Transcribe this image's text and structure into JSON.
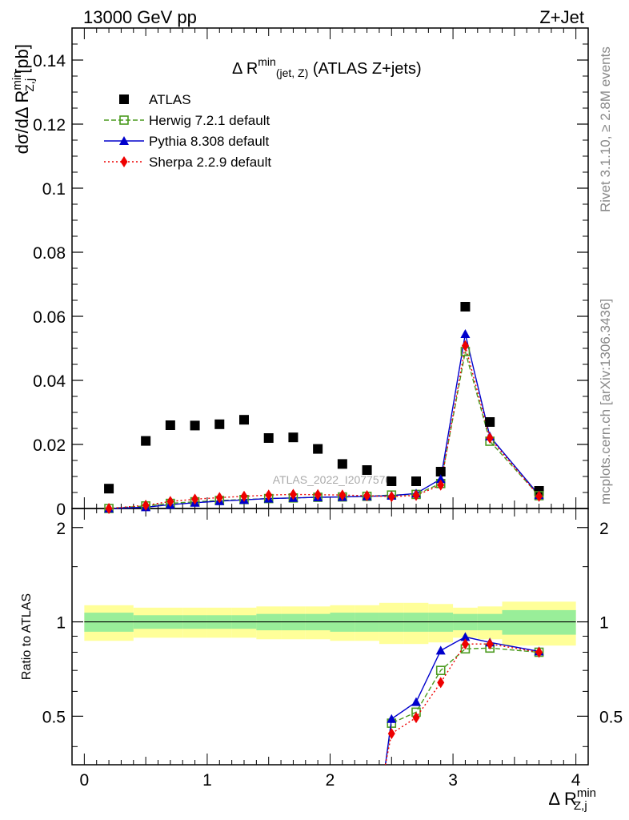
{
  "header": {
    "left": "13000 GeV pp",
    "right": "Z+Jet"
  },
  "side_text": {
    "rivet": "Rivet 3.1.10, ≥ 2.8M events",
    "mcplots": "mcplots.cern.ch [arXiv:1306.3436]"
  },
  "watermark": "ATLAS_2022_I2077570",
  "chart_data": [
    {
      "type": "scatter",
      "title": {
        "prefix": "Δ R",
        "sup": "min",
        "sub": "(jet, Z)",
        "suffix": " (ATLAS Z+jets)"
      },
      "ylabel": "dσ/dΔ R^min_Z,j [pb]",
      "xlim": [
        -0.1,
        4.1
      ],
      "ylim": [
        0,
        0.15
      ],
      "yticks": [
        0,
        0.02,
        0.04,
        0.06,
        0.08,
        0.1,
        0.12,
        0.14
      ],
      "ytick_labels": [
        "0",
        "0.02",
        "0.04",
        "0.06",
        "0.08",
        "0.1",
        "0.12",
        "0.14"
      ],
      "legend_position": "top-left",
      "x": [
        0.2,
        0.5,
        0.7,
        0.9,
        1.1,
        1.3,
        1.5,
        1.7,
        1.9,
        2.1,
        2.3,
        2.5,
        2.7,
        2.9,
        3.1,
        3.3,
        3.7
      ],
      "series": [
        {
          "name": "ATLAS",
          "color": "#000000",
          "marker": "square-filled",
          "values": [
            0.0062,
            0.0211,
            0.026,
            0.0259,
            0.0263,
            0.0277,
            0.022,
            0.0222,
            0.0186,
            0.0139,
            0.012,
            0.0085,
            0.0085,
            0.0115,
            0.063,
            0.027,
            0.0055
          ]
        },
        {
          "name": "Herwig 7.2.1 default",
          "color": "#4a9a1e",
          "marker": "square-open",
          "line": "dashed",
          "values": [
            0.0,
            0.0008,
            0.0016,
            0.0021,
            0.0025,
            0.0028,
            0.0031,
            0.0033,
            0.0035,
            0.0036,
            0.0038,
            0.0042,
            0.0044,
            0.0078,
            0.049,
            0.021,
            0.004
          ]
        },
        {
          "name": "Pythia 8.308 default",
          "color": "#0000cc",
          "marker": "triangle-filled",
          "line": "solid",
          "values": [
            0.0,
            0.0004,
            0.0012,
            0.0018,
            0.0023,
            0.0027,
            0.0031,
            0.0033,
            0.0035,
            0.0036,
            0.0038,
            0.004,
            0.0047,
            0.0092,
            0.0545,
            0.0225,
            0.0042
          ]
        },
        {
          "name": "Sherpa 2.2.9 default",
          "color": "#ee0000",
          "marker": "diamond-filled",
          "line": "dotted",
          "values": [
            0.0,
            0.001,
            0.0022,
            0.0029,
            0.0034,
            0.0038,
            0.0042,
            0.0044,
            0.0043,
            0.0042,
            0.004,
            0.0037,
            0.0041,
            0.0073,
            0.0508,
            0.022,
            0.0038
          ]
        }
      ]
    },
    {
      "type": "line",
      "ylabel": "Ratio to ATLAS",
      "xlabel": "Δ R^min_Z,j",
      "xlim": [
        -0.1,
        4.1
      ],
      "ylim": [
        0.35,
        2.3
      ],
      "xticks": [
        0,
        1,
        2,
        3,
        4
      ],
      "xtick_labels": [
        "0",
        "1",
        "2",
        "3",
        "4"
      ],
      "yticks": [
        0.5,
        1,
        2
      ],
      "ytick_labels": [
        "0.5",
        "1",
        "2"
      ],
      "band_edges": [
        0.0,
        0.4,
        0.6,
        0.8,
        1.0,
        1.2,
        1.4,
        1.6,
        1.8,
        2.0,
        2.2,
        2.4,
        2.6,
        2.8,
        3.0,
        3.2,
        3.4,
        4.0
      ],
      "stat_band": {
        "color": "#99ee99",
        "low": [
          0.93,
          0.95,
          0.95,
          0.95,
          0.95,
          0.95,
          0.94,
          0.94,
          0.94,
          0.93,
          0.93,
          0.93,
          0.93,
          0.93,
          0.94,
          0.94,
          0.91
        ],
        "high": [
          1.07,
          1.05,
          1.05,
          1.05,
          1.05,
          1.05,
          1.06,
          1.06,
          1.06,
          1.07,
          1.07,
          1.07,
          1.07,
          1.07,
          1.06,
          1.06,
          1.09
        ]
      },
      "syst_band": {
        "color": "#ffff99",
        "low": [
          0.87,
          0.89,
          0.89,
          0.89,
          0.89,
          0.89,
          0.88,
          0.88,
          0.88,
          0.87,
          0.87,
          0.85,
          0.85,
          0.86,
          0.89,
          0.88,
          0.84
        ],
        "high": [
          1.13,
          1.11,
          1.11,
          1.11,
          1.11,
          1.11,
          1.12,
          1.12,
          1.12,
          1.13,
          1.13,
          1.15,
          1.15,
          1.14,
          1.11,
          1.12,
          1.16
        ]
      },
      "x": [
        2.5,
        2.7,
        2.9,
        3.1,
        3.3,
        3.7
      ],
      "series": [
        {
          "name": "Herwig 7.2.1 default",
          "color": "#4a9a1e",
          "marker": "square-open",
          "line": "dashed",
          "values": [
            0.475,
            0.515,
            0.7,
            0.82,
            0.825,
            0.8
          ],
          "entry": [
            2.45,
            0.35
          ]
        },
        {
          "name": "Pythia 8.308 default",
          "color": "#0000cc",
          "marker": "triangle-filled",
          "line": "solid",
          "values": [
            0.49,
            0.555,
            0.81,
            0.895,
            0.86,
            0.805
          ],
          "entry": [
            2.45,
            0.35
          ]
        },
        {
          "name": "Sherpa 2.2.9 default",
          "color": "#ee0000",
          "marker": "diamond-filled",
          "line": "dotted",
          "values": [
            0.44,
            0.495,
            0.64,
            0.85,
            0.85,
            0.8
          ],
          "entry": [
            2.45,
            0.35
          ]
        }
      ]
    }
  ]
}
